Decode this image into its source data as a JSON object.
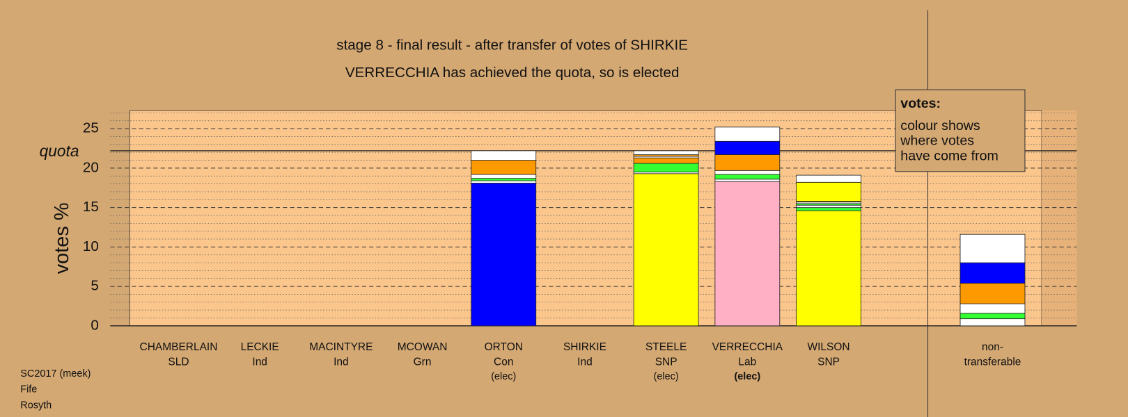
{
  "chart_data": {
    "type": "bar",
    "title": "stage 8 - final result - after transfer of votes of SHIRKIE",
    "subtitle": "VERRECCHIA has achieved the quota, so is elected",
    "y_label": "votes %",
    "quota_label": "quota",
    "quota": 22.2,
    "categories": [
      "CHAMBERLAIN",
      "LECKIE",
      "MACINTYRE",
      "MCOWAN",
      "ORTON",
      "SHIRKIE",
      "STEELE",
      "VERRECCHIA",
      "WILSON",
      "non-"
    ],
    "sublabels": [
      "SLD",
      "Ind",
      "Ind",
      "Grn",
      "Con",
      "Ind",
      "SNP",
      "Lab",
      "SNP",
      "transferable"
    ],
    "status": [
      null,
      null,
      null,
      null,
      "(elec)",
      null,
      "(elec)",
      "(elec)",
      null,
      null
    ],
    "bars": [
      {
        "segments": []
      },
      {
        "segments": []
      },
      {
        "segments": []
      },
      {
        "segments": []
      },
      {
        "segments": [
          {
            "color": "#0000ff",
            "value": 18.1
          },
          {
            "color": "#ffffff",
            "value": 0.3
          },
          {
            "color": "#33ff33",
            "value": 0.3
          },
          {
            "color": "#ffffff",
            "value": 0.5
          },
          {
            "color": "#ff9900",
            "value": 1.8
          },
          {
            "color": "#ffffff",
            "value": 1.2
          }
        ]
      },
      {
        "segments": []
      },
      {
        "segments": [
          {
            "color": "#ffff00",
            "value": 19.3
          },
          {
            "color": "#ffffff",
            "value": 0.2
          },
          {
            "color": "#33ff33",
            "value": 1.1
          },
          {
            "color": "#ff9900",
            "value": 0.7
          },
          {
            "color": "#ffffff",
            "value": 0.2
          },
          {
            "color": "#ff9900",
            "value": 0.2
          },
          {
            "color": "#ffffff",
            "value": 0.5
          }
        ]
      },
      {
        "segments": [
          {
            "color": "#ffb0c4",
            "value": 18.3
          },
          {
            "color": "#ffffff",
            "value": 0.3
          },
          {
            "color": "#33ff33",
            "value": 0.6
          },
          {
            "color": "#ffffff",
            "value": 0.5
          },
          {
            "color": "#ff9900",
            "value": 2.0
          },
          {
            "color": "#0000ff",
            "value": 1.7
          },
          {
            "color": "#ffffff",
            "value": 1.8
          }
        ]
      },
      {
        "segments": [
          {
            "color": "#ffff00",
            "value": 14.6
          },
          {
            "color": "#33ff33",
            "value": 0.4
          },
          {
            "color": "#ffffff",
            "value": 0.3
          },
          {
            "color": "#33ff33",
            "value": 0.2
          },
          {
            "color": "#ffffff",
            "value": 0.2
          },
          {
            "color": "#ff9900",
            "value": 0.1
          },
          {
            "color": "#ffff00",
            "value": 2.4
          },
          {
            "color": "#ffffff",
            "value": 0.9
          }
        ]
      },
      {
        "segments": [
          {
            "color": "#ffffff",
            "value": 0.9
          },
          {
            "color": "#33ff33",
            "value": 0.7
          },
          {
            "color": "#ffffff",
            "value": 1.2
          },
          {
            "color": "#ff9900",
            "value": 2.6
          },
          {
            "color": "#0000ff",
            "value": 2.6
          },
          {
            "color": "#ffffff",
            "value": 3.6
          }
        ]
      }
    ],
    "ylim": [
      0,
      27.3
    ],
    "yticks": [
      0,
      5,
      10,
      15,
      20,
      25
    ],
    "yminor": [
      1,
      2,
      3,
      4,
      6,
      7,
      8,
      9,
      11,
      12,
      13,
      14,
      16,
      17,
      18,
      19,
      21,
      22,
      23,
      24,
      26,
      27
    ],
    "legend": {
      "title": "votes:",
      "lines": [
        "colour shows",
        "where votes",
        "have come from"
      ]
    },
    "footer": [
      "SC2017 (meek)",
      "Fife",
      "Rosyth"
    ]
  }
}
